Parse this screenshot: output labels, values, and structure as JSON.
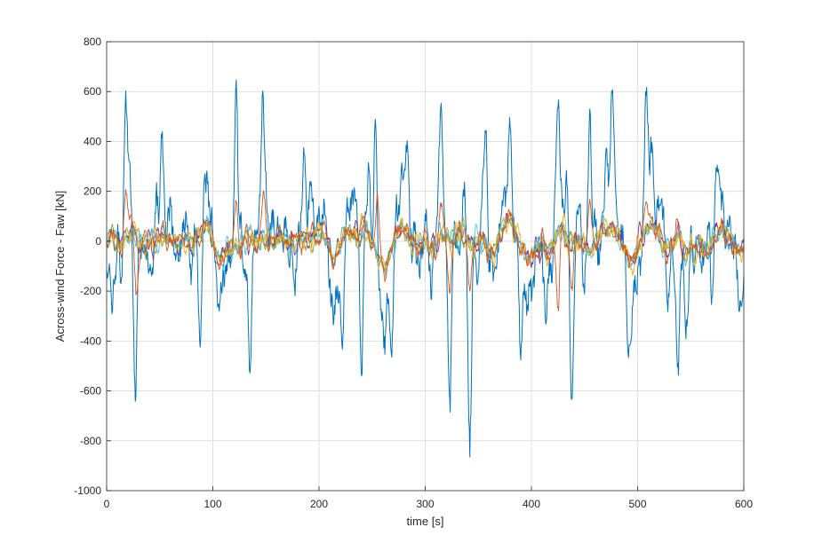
{
  "chart_data": {
    "type": "line",
    "title": "",
    "xlabel": "time [s]",
    "ylabel": "Across-wind Force - Faw [kN]",
    "xlim": [
      0,
      600
    ],
    "ylim": [
      -1000,
      800
    ],
    "xticks": [
      0,
      100,
      200,
      300,
      400,
      500,
      600
    ],
    "yticks": [
      -1000,
      -800,
      -600,
      -400,
      -200,
      0,
      200,
      400,
      600,
      800
    ],
    "xtick_labels": [
      "0",
      "100",
      "200",
      "300",
      "400",
      "500",
      "600"
    ],
    "ytick_labels": [
      "-1000",
      "-800",
      "-600",
      "-400",
      "-200",
      "0",
      "200",
      "400",
      "600",
      "800"
    ],
    "grid": true,
    "legend": "none",
    "sample_interval_s": 0.5,
    "series": [
      {
        "color": "#0072BD",
        "role": "widest-envelope",
        "amplitude_kN": 280,
        "peaks": [
          {
            "t": 5,
            "v": -300
          },
          {
            "t": 18,
            "v": 630
          },
          {
            "t": 27,
            "v": -670
          },
          {
            "t": 52,
            "v": 460
          },
          {
            "t": 88,
            "v": -440
          },
          {
            "t": 122,
            "v": 690
          },
          {
            "t": 135,
            "v": -570
          },
          {
            "t": 147,
            "v": 660
          },
          {
            "t": 186,
            "v": 400
          },
          {
            "t": 222,
            "v": -480
          },
          {
            "t": 240,
            "v": -570
          },
          {
            "t": 253,
            "v": 560
          },
          {
            "t": 268,
            "v": -480
          },
          {
            "t": 283,
            "v": 430
          },
          {
            "t": 315,
            "v": 570
          },
          {
            "t": 323,
            "v": -720
          },
          {
            "t": 342,
            "v": -880
          },
          {
            "t": 357,
            "v": 480
          },
          {
            "t": 390,
            "v": -500
          },
          {
            "t": 425,
            "v": 620
          },
          {
            "t": 438,
            "v": -700
          },
          {
            "t": 455,
            "v": 570
          },
          {
            "t": 476,
            "v": 640
          },
          {
            "t": 492,
            "v": -480
          },
          {
            "t": 508,
            "v": 670
          },
          {
            "t": 538,
            "v": -570
          },
          {
            "t": 575,
            "v": 330
          },
          {
            "t": 598,
            "v": -290
          }
        ]
      },
      {
        "color": "#7E2F8E",
        "role": "inner-band",
        "amplitude_kN": 70
      },
      {
        "color": "#77AC30",
        "role": "inner-band",
        "amplitude_kN": 65
      },
      {
        "color": "#4DBEEE",
        "role": "inner-band",
        "amplitude_kN": 75
      },
      {
        "color": "#EDB120",
        "role": "inner-band",
        "amplitude_kN": 80
      },
      {
        "color": "#D95319",
        "role": "narrow-band",
        "amplitude_kN": 85,
        "peaks": [
          {
            "t": 18,
            "v": 220
          },
          {
            "t": 28,
            "v": -230
          },
          {
            "t": 122,
            "v": 180
          },
          {
            "t": 148,
            "v": 210
          },
          {
            "t": 255,
            "v": 200
          },
          {
            "t": 315,
            "v": 160
          },
          {
            "t": 323,
            "v": -220
          },
          {
            "t": 342,
            "v": -200
          },
          {
            "t": 425,
            "v": -300
          },
          {
            "t": 438,
            "v": -210
          },
          {
            "t": 455,
            "v": 180
          },
          {
            "t": 508,
            "v": 170
          }
        ]
      }
    ]
  }
}
